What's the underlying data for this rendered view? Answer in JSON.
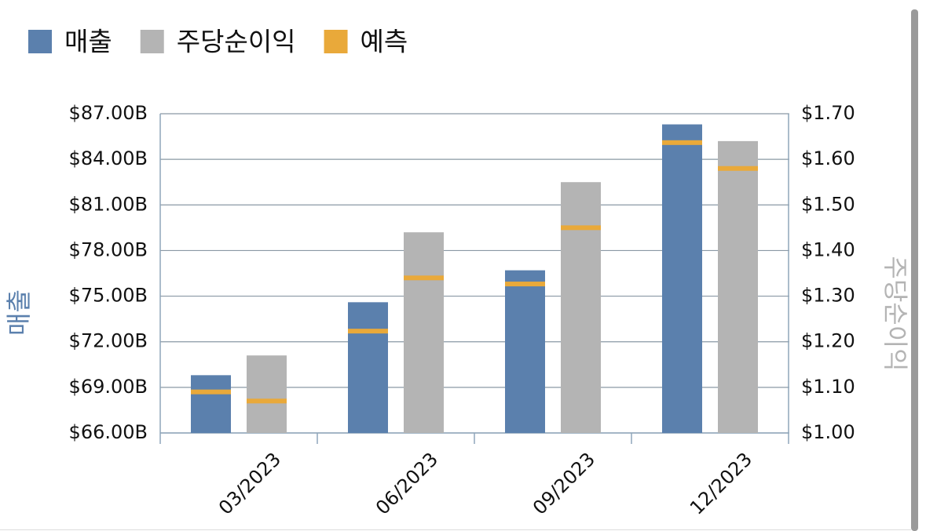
{
  "chart_data": {
    "type": "bar",
    "categories": [
      "03/2023",
      "06/2023",
      "09/2023",
      "12/2023"
    ],
    "series": [
      {
        "name": "매출",
        "color": "#5b80ad",
        "axis": "y",
        "values": [
          69.8,
          74.6,
          76.7,
          86.3
        ],
        "forecast_values": [
          68.7,
          72.7,
          75.8,
          85.1
        ]
      },
      {
        "name": "주당순이익",
        "color": "#b4b4b4",
        "axis": "y2",
        "values": [
          1.17,
          1.44,
          1.55,
          1.64
        ],
        "forecast_values": [
          1.07,
          1.34,
          1.45,
          1.58
        ]
      }
    ],
    "forecast": {
      "name": "예측",
      "color": "#e9a93a"
    },
    "y_label": "매출",
    "y2_label": "주당순이익",
    "ylim": [
      66,
      87
    ],
    "yticks": [
      {
        "value": 66,
        "label": "$66.00B"
      },
      {
        "value": 69,
        "label": "$69.00B"
      },
      {
        "value": 72,
        "label": "$72.00B"
      },
      {
        "value": 75,
        "label": "$75.00B"
      },
      {
        "value": 78,
        "label": "$78.00B"
      },
      {
        "value": 81,
        "label": "$81.00B"
      },
      {
        "value": 84,
        "label": "$84.00B"
      },
      {
        "value": 87,
        "label": "$87.00B"
      }
    ],
    "y2lim": [
      1.0,
      1.7
    ],
    "y2ticks": [
      {
        "value": 1.0,
        "label": "$1.00"
      },
      {
        "value": 1.1,
        "label": "$1.10"
      },
      {
        "value": 1.2,
        "label": "$1.20"
      },
      {
        "value": 1.3,
        "label": "$1.30"
      },
      {
        "value": 1.4,
        "label": "$1.40"
      },
      {
        "value": 1.5,
        "label": "$1.50"
      },
      {
        "value": 1.6,
        "label": "$1.60"
      },
      {
        "value": 1.7,
        "label": "$1.70"
      }
    ],
    "grid": true,
    "legend": "top-left"
  }
}
